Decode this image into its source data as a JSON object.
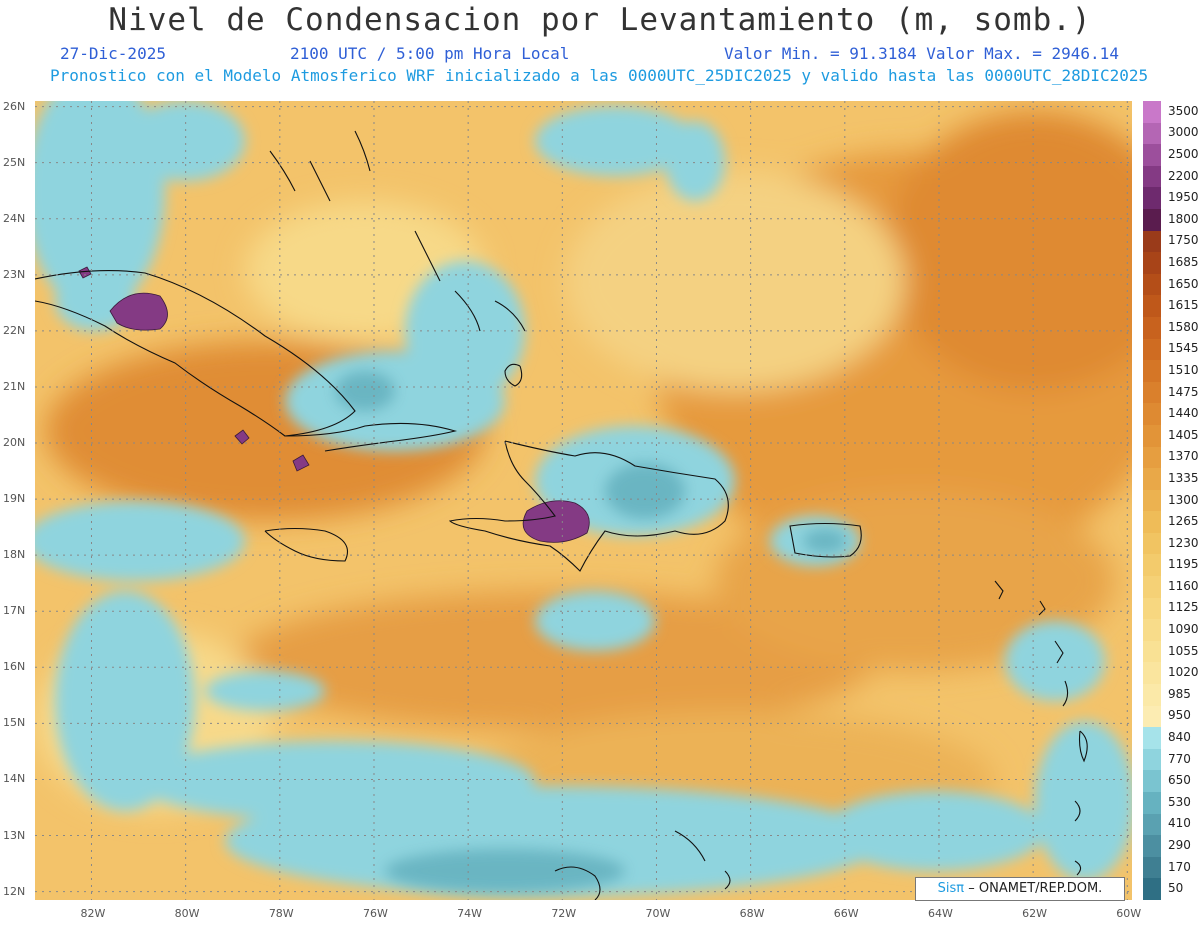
{
  "header": {
    "title": "Nivel de Condensacion por Levantamiento (m, somb.)",
    "date": "27-Dic-2025",
    "time": "2100 UTC / 5:00 pm Hora Local",
    "minmax": "Valor Min. = 91.3184  Valor Max. = 2946.14",
    "model_line": "Pronostico con el Modelo Atmosferico WRF inicializado a las 0000UTC_25DIC2025 y valido hasta las  0000UTC_28DIC2025"
  },
  "axes": {
    "lat_labels": [
      "26N",
      "25N",
      "24N",
      "23N",
      "22N",
      "21N",
      "20N",
      "19N",
      "18N",
      "17N",
      "16N",
      "15N",
      "14N",
      "13N",
      "12N"
    ],
    "lon_labels": [
      "82W",
      "80W",
      "78W",
      "76W",
      "74W",
      "72W",
      "70W",
      "68W",
      "66W",
      "64W",
      "62W",
      "60W"
    ]
  },
  "colorbar": {
    "labels": [
      "3500",
      "3000",
      "2500",
      "2200",
      "1950",
      "1800",
      "1750",
      "1685",
      "1650",
      "1615",
      "1580",
      "1545",
      "1510",
      "1475",
      "1440",
      "1405",
      "1370",
      "1335",
      "1300",
      "1265",
      "1230",
      "1195",
      "1160",
      "1125",
      "1090",
      "1055",
      "1020",
      "985",
      "950",
      "840",
      "770",
      "650",
      "530",
      "410",
      "290",
      "170",
      "50"
    ],
    "colors": [
      "#c978c9",
      "#b466b4",
      "#9c4f9c",
      "#843a84",
      "#6e2a6e",
      "#5a1c4e",
      "#9a3b1a",
      "#a84418",
      "#b44e18",
      "#bf581a",
      "#c8621e",
      "#cf6c22",
      "#d57626",
      "#da802c",
      "#de8a32",
      "#e29438",
      "#e69e40",
      "#e9a848",
      "#ecb250",
      "#efbc58",
      "#f1c462",
      "#f3cb6c",
      "#f5d176",
      "#f7d780",
      "#f8dc8a",
      "#f9e194",
      "#fae59e",
      "#fbe9a8",
      "#fcecb2",
      "#a6e3ea",
      "#8fd4de",
      "#7ac4d0",
      "#66b2c0",
      "#5aa1b1",
      "#4c8fa1",
      "#3f7f92",
      "#2f6f84"
    ]
  },
  "credit": {
    "brand": "Sisπ",
    "text": "– ONAMET/REP.DOM."
  },
  "colors": {
    "grid": "#888888",
    "coast": "#111111"
  }
}
